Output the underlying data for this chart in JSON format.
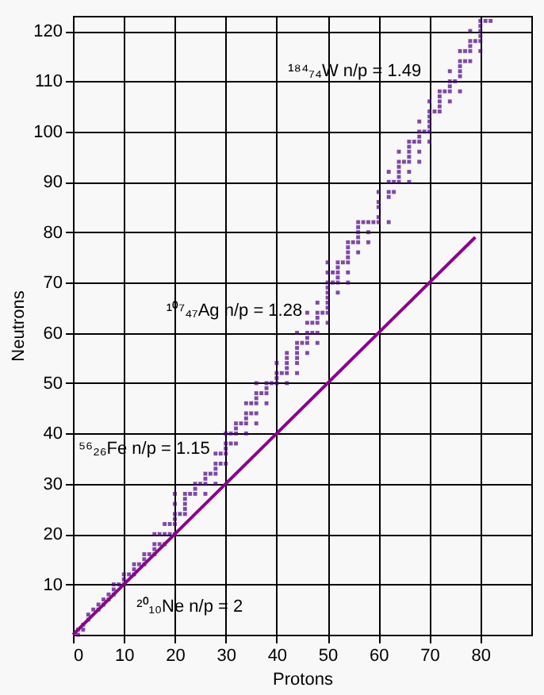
{
  "chart_data": {
    "type": "scatter",
    "xlabel": "Protons",
    "ylabel": "Neutrons",
    "xlim": [
      0,
      90
    ],
    "ylim": [
      0,
      123
    ],
    "xticks": [
      0,
      10,
      20,
      30,
      40,
      50,
      60,
      70,
      80
    ],
    "yticks": [
      10,
      20,
      30,
      40,
      50,
      60,
      70,
      80,
      90,
      100,
      110,
      120
    ],
    "grid": true,
    "series": [
      {
        "marker": "square",
        "color": "#4b0082",
        "x": [
          1,
          1,
          2,
          2,
          3,
          3,
          4,
          5,
          5,
          6,
          6,
          7,
          7,
          8,
          8,
          8,
          9,
          10,
          10,
          10,
          11,
          12,
          12,
          12,
          13,
          14,
          14,
          14,
          15,
          16,
          16,
          16,
          16,
          17,
          17,
          18,
          18,
          18,
          19,
          19,
          20,
          20,
          20,
          20,
          20,
          20,
          21,
          22,
          22,
          22,
          22,
          22,
          23,
          24,
          24,
          24,
          25,
          26,
          26,
          26,
          26,
          27,
          28,
          28,
          28,
          28,
          28,
          29,
          29,
          30,
          30,
          30,
          30,
          30,
          31,
          31,
          32,
          32,
          32,
          32,
          33,
          34,
          34,
          34,
          34,
          34,
          35,
          35,
          36,
          36,
          36,
          36,
          36,
          36,
          37,
          38,
          38,
          38,
          38,
          39,
          40,
          40,
          40,
          40,
          41,
          42,
          42,
          42,
          42,
          42,
          42,
          44,
          44,
          44,
          44,
          44,
          44,
          44,
          45,
          46,
          46,
          46,
          46,
          46,
          46,
          47,
          47,
          48,
          48,
          48,
          48,
          48,
          48,
          49,
          50,
          50,
          50,
          50,
          50,
          50,
          50,
          50,
          50,
          50,
          51,
          51,
          52,
          52,
          52,
          52,
          52,
          52,
          53,
          54,
          54,
          54,
          54,
          54,
          54,
          54,
          55,
          56,
          56,
          56,
          56,
          56,
          56,
          57,
          58,
          58,
          58,
          59,
          60,
          60,
          60,
          60,
          60,
          62,
          62,
          62,
          62,
          62,
          63,
          63,
          64,
          64,
          64,
          64,
          64,
          64,
          65,
          66,
          66,
          66,
          66,
          66,
          66,
          66,
          67,
          68,
          68,
          68,
          68,
          68,
          68,
          69,
          70,
          70,
          70,
          70,
          70,
          70,
          70,
          71,
          72,
          72,
          72,
          72,
          72,
          73,
          74,
          74,
          74,
          74,
          74,
          75,
          76,
          76,
          76,
          76,
          76,
          76,
          77,
          77,
          78,
          78,
          78,
          78,
          78,
          79,
          80,
          80,
          80,
          80,
          80,
          80,
          81,
          82
        ],
        "values": [
          0,
          1,
          1,
          2,
          3,
          4,
          5,
          5,
          6,
          6,
          7,
          7,
          8,
          8,
          9,
          10,
          10,
          10,
          11,
          12,
          12,
          12,
          13,
          14,
          14,
          14,
          15,
          16,
          16,
          16,
          17,
          18,
          20,
          18,
          20,
          18,
          20,
          22,
          20,
          22,
          20,
          22,
          23,
          24,
          26,
          28,
          24,
          24,
          25,
          26,
          27,
          28,
          28,
          28,
          29,
          30,
          30,
          28,
          30,
          31,
          32,
          32,
          30,
          32,
          33,
          34,
          36,
          34,
          36,
          34,
          36,
          37,
          38,
          40,
          38,
          40,
          38,
          40,
          41,
          42,
          42,
          40,
          42,
          43,
          44,
          46,
          44,
          46,
          42,
          44,
          46,
          47,
          48,
          50,
          48,
          46,
          48,
          49,
          50,
          50,
          50,
          51,
          52,
          54,
          52,
          50,
          52,
          53,
          54,
          55,
          56,
          52,
          54,
          55,
          56,
          57,
          58,
          60,
          58,
          56,
          58,
          59,
          60,
          62,
          64,
          60,
          62,
          58,
          60,
          62,
          63,
          64,
          66,
          64,
          62,
          64,
          65,
          66,
          67,
          68,
          69,
          70,
          72,
          74,
          70,
          72,
          68,
          70,
          71,
          72,
          73,
          74,
          74,
          70,
          72,
          74,
          75,
          76,
          77,
          78,
          78,
          76,
          78,
          79,
          80,
          81,
          82,
          82,
          78,
          80,
          82,
          82,
          82,
          83,
          85,
          86,
          88,
          82,
          87,
          88,
          90,
          92,
          88,
          90,
          90,
          91,
          92,
          93,
          94,
          96,
          94,
          90,
          92,
          94,
          95,
          96,
          97,
          98,
          98,
          94,
          96,
          98,
          99,
          100,
          102,
          100,
          98,
          100,
          101,
          102,
          103,
          104,
          106,
          104,
          104,
          105,
          106,
          107,
          108,
          108,
          106,
          108,
          109,
          110,
          112,
          110,
          108,
          111,
          112,
          113,
          114,
          116,
          114,
          116,
          114,
          116,
          117,
          118,
          120,
          118,
          116,
          118,
          119,
          120,
          121,
          122,
          122,
          122
        ]
      },
      {
        "type": "line",
        "color": "#8b008b",
        "x": [
          0,
          79
        ],
        "values": [
          0,
          79
        ]
      }
    ],
    "annotations": [
      {
        "text": "²⁰₁₀Ne  n/p = 2",
        "x": 10,
        "y": 10
      },
      {
        "text": "⁵⁶₂₆Fe  n/p = 1.15",
        "x": 26,
        "y": 30
      },
      {
        "text": "¹⁰⁷₄₇Ag  n/p = 1.28",
        "x": 47,
        "y": 60
      },
      {
        "text": "¹⁸⁴₇₄W  n/p = 1.49",
        "x": 74,
        "y": 110
      }
    ]
  }
}
